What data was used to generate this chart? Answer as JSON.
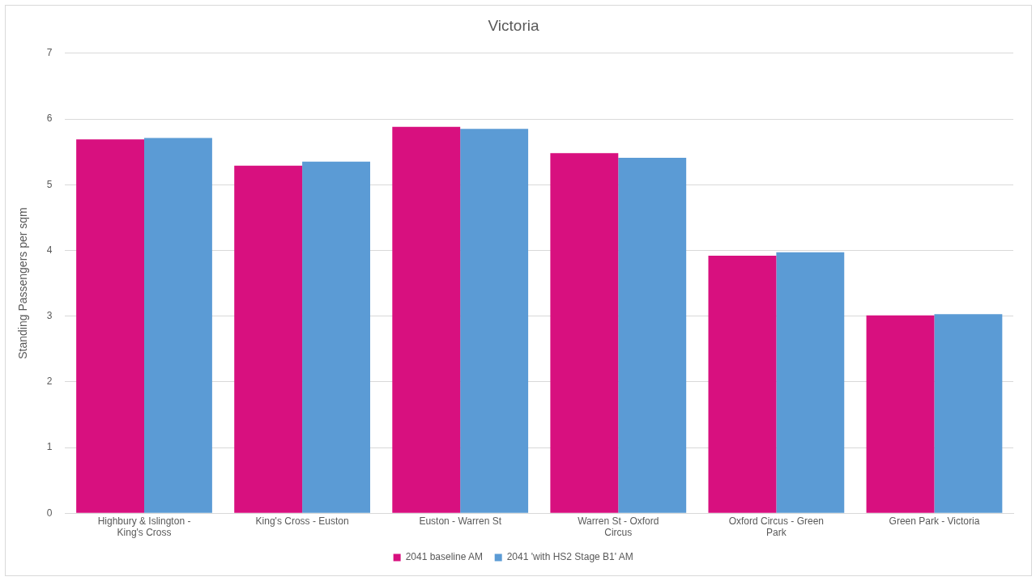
{
  "chart_data": {
    "type": "bar",
    "title": "Victoria",
    "ylabel": "Standing Passengers per sqm",
    "categories": [
      "Highbury & Islington - King's Cross",
      "King's Cross - Euston",
      "Euston - Warren St",
      "Warren St - Oxford Circus",
      "Oxford Circus - Green Park",
      "Green Park - Victoria"
    ],
    "series": [
      {
        "name": "2041 baseline AM",
        "color": "#d8107f",
        "values": [
          5.69,
          5.29,
          5.88,
          5.48,
          3.92,
          3.01
        ]
      },
      {
        "name": "2041 'with HS2 Stage B1' AM",
        "color": "#5b9bd5",
        "values": [
          5.71,
          5.35,
          5.85,
          5.41,
          3.97,
          3.03
        ]
      }
    ],
    "ylim": [
      0,
      7
    ],
    "yticks": [
      0,
      1,
      2,
      3,
      4,
      5,
      6,
      7
    ],
    "grid": "y",
    "legend": "bottom"
  }
}
